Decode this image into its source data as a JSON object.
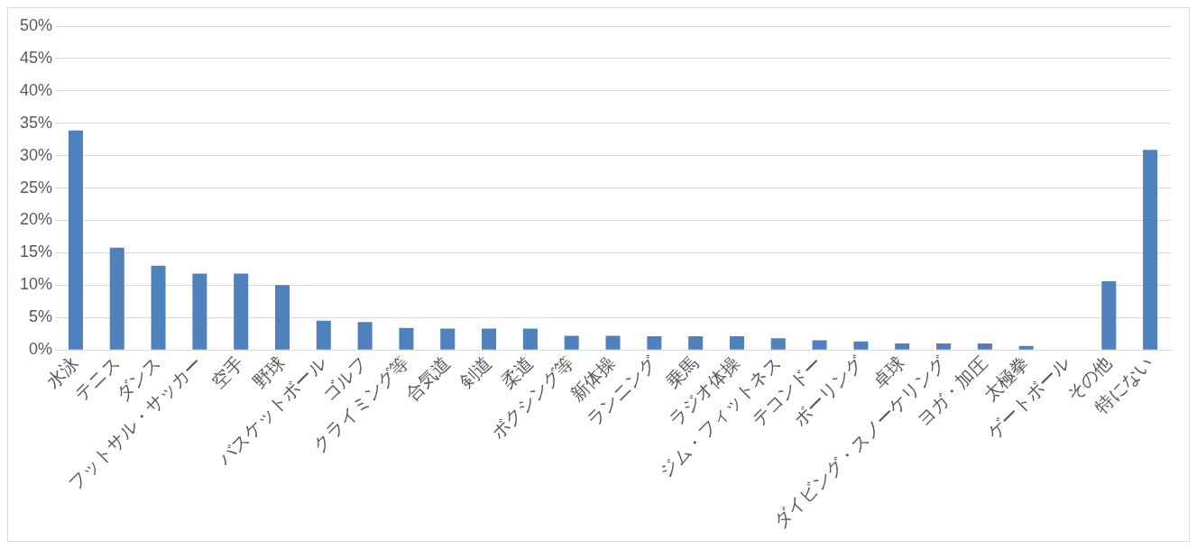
{
  "chart_data": {
    "type": "bar",
    "categories": [
      "水泳",
      "テニス",
      "ダンス",
      "フットサル・サッカー",
      "空手",
      "野球",
      "バスケットボール",
      "ゴルフ",
      "クライミング等",
      "合気道",
      "剣道",
      "柔道",
      "ボクシング等",
      "新体操",
      "ランニング",
      "乗馬",
      "ラジオ体操",
      "ジム・フィットネス",
      "テコンドー",
      "ボーリング",
      "卓球",
      "ダイビング・スノーケリング",
      "ヨガ・加圧",
      "太極拳",
      "ゲートボール",
      "その他",
      "特にない"
    ],
    "values": [
      33.9,
      15.8,
      13.0,
      11.8,
      11.8,
      10.0,
      4.5,
      4.3,
      3.4,
      3.3,
      3.3,
      3.3,
      2.2,
      2.2,
      2.1,
      2.1,
      2.1,
      1.8,
      1.5,
      1.3,
      1.0,
      1.0,
      1.0,
      0.6,
      0,
      10.6,
      30.9
    ],
    "color": "#4f81bd",
    "ylim": [
      0,
      50
    ],
    "yticks": [
      {
        "value": 0,
        "label": "0%"
      },
      {
        "value": 5,
        "label": "5%"
      },
      {
        "value": 10,
        "label": "10%"
      },
      {
        "value": 15,
        "label": "15%"
      },
      {
        "value": 20,
        "label": "20%"
      },
      {
        "value": 25,
        "label": "25%"
      },
      {
        "value": 30,
        "label": "30%"
      },
      {
        "value": 35,
        "label": "35%"
      },
      {
        "value": 40,
        "label": "40%"
      },
      {
        "value": 45,
        "label": "45%"
      },
      {
        "value": 50,
        "label": "50%"
      }
    ],
    "grid": "y",
    "legend": false
  }
}
